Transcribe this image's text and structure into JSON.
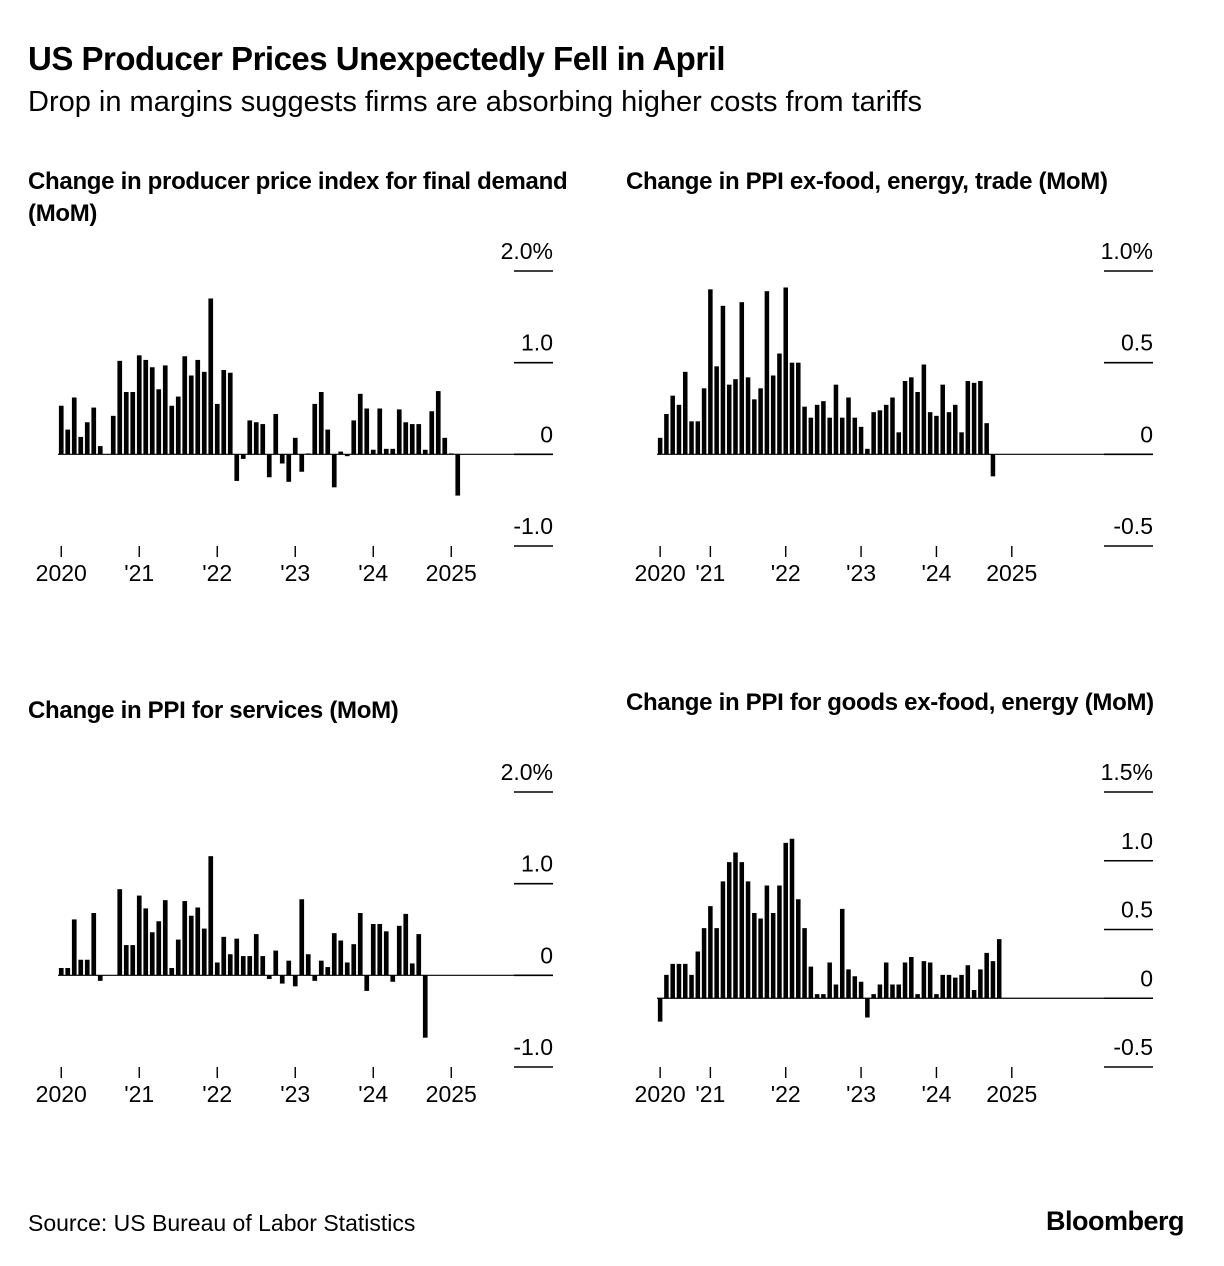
{
  "title": "US Producer Prices Unexpectedly Fell in April",
  "subtitle": "Drop in margins suggests firms are absorbing higher costs from tariffs",
  "source": "Source: US Bureau of Labor Statistics",
  "brand": "Bloomberg",
  "colors": {
    "bar": "#000000",
    "text": "#000000",
    "background": "#ffffff"
  },
  "chart_data": [
    {
      "type": "bar",
      "title": "Change in producer price index for final demand (MoM)",
      "ylim": [
        -1.0,
        2.0
      ],
      "yticks": [
        {
          "value": 2.0,
          "label": "2.0%"
        },
        {
          "value": 1.0,
          "label": "1.0"
        },
        {
          "value": 0,
          "label": "0"
        },
        {
          "value": -1.0,
          "label": "-1.0"
        }
      ],
      "xticks": [
        {
          "index": 0,
          "label": "2020"
        },
        {
          "index": 12,
          "label": "'21"
        },
        {
          "index": 24,
          "label": "'22"
        },
        {
          "index": 36,
          "label": "'23"
        },
        {
          "index": 48,
          "label": "'24"
        },
        {
          "index": 60,
          "label": "2025"
        }
      ],
      "start": "2020-01",
      "values": [
        0.53,
        0.27,
        0.62,
        0.19,
        0.35,
        0.51,
        0.09,
        0,
        0.42,
        1.02,
        0.68,
        0.68,
        1.08,
        1.03,
        0.95,
        0.71,
        0.97,
        0.53,
        0.63,
        1.07,
        0.86,
        1.03,
        0.9,
        1.7,
        0.55,
        0.92,
        0.89,
        -0.29,
        -0.05,
        0.37,
        0.35,
        0.33,
        -0.25,
        0.44,
        -0.1,
        -0.3,
        0.18,
        -0.19,
        0.01,
        0.55,
        0.68,
        0.27,
        -0.36,
        0.03,
        -0.02,
        0.37,
        0.66,
        0.5,
        0.05,
        0.5,
        0.06,
        0.06,
        0.49,
        0.35,
        0.33,
        0.33,
        0.05,
        0.47,
        0.69,
        0.18,
        0.01,
        -0.45
      ]
    },
    {
      "type": "bar",
      "title": "Change in PPI ex-food, energy, trade (MoM)",
      "ylim": [
        -0.5,
        1.0
      ],
      "yticks": [
        {
          "value": 1.0,
          "label": "1.0%"
        },
        {
          "value": 0.5,
          "label": "0.5"
        },
        {
          "value": 0,
          "label": "0"
        },
        {
          "value": -0.5,
          "label": "-0.5"
        }
      ],
      "xticks": [
        {
          "index": 0,
          "label": "2020"
        },
        {
          "index": 8,
          "label": "'21"
        },
        {
          "index": 20,
          "label": "'22"
        },
        {
          "index": 32,
          "label": "'23"
        },
        {
          "index": 44,
          "label": "'24"
        },
        {
          "index": 56,
          "label": "2025"
        }
      ],
      "start": "2020-01",
      "values": [
        0.09,
        0.22,
        0.32,
        0.27,
        0.45,
        0.18,
        0.18,
        0.36,
        0.9,
        0.48,
        0.81,
        0.38,
        0.41,
        0.83,
        0.42,
        0.3,
        0.36,
        0.89,
        0.43,
        0.55,
        0.91,
        0.5,
        0.5,
        0.26,
        0.2,
        0.27,
        0.29,
        0.2,
        0.38,
        0.2,
        0.31,
        0.2,
        0.15,
        0.03,
        0.23,
        0.24,
        0.27,
        0.31,
        0.12,
        0.4,
        0.42,
        0.34,
        0.49,
        0.23,
        0.21,
        0.38,
        0.23,
        0.27,
        0.12,
        0.4,
        0.39,
        0.4,
        0.17,
        -0.12
      ]
    },
    {
      "type": "bar",
      "title": "Change in PPI for services (MoM)",
      "ylim": [
        -1.0,
        2.0
      ],
      "yticks": [
        {
          "value": 2.0,
          "label": "2.0%"
        },
        {
          "value": 1.0,
          "label": "1.0"
        },
        {
          "value": 0,
          "label": "0"
        },
        {
          "value": -1.0,
          "label": "-1.0"
        }
      ],
      "xticks": [
        {
          "index": 0,
          "label": "2020"
        },
        {
          "index": 12,
          "label": "'21"
        },
        {
          "index": 24,
          "label": "'22"
        },
        {
          "index": 36,
          "label": "'23"
        },
        {
          "index": 48,
          "label": "'24"
        },
        {
          "index": 60,
          "label": "2025"
        }
      ],
      "start": "2020-01",
      "values": [
        0.08,
        0.08,
        0.61,
        0.17,
        0.17,
        0.68,
        -0.06,
        0,
        0,
        0.94,
        0.33,
        0.33,
        0.87,
        0.73,
        0.47,
        0.59,
        0.82,
        0.08,
        0.39,
        0.81,
        0.65,
        0.74,
        0.51,
        1.3,
        0.14,
        0.42,
        0.23,
        0.4,
        0.21,
        0.21,
        0.45,
        0.21,
        -0.04,
        0.27,
        -0.09,
        0.16,
        -0.12,
        0.83,
        0.23,
        -0.06,
        0.16,
        0.09,
        0.46,
        0.38,
        0.14,
        0.34,
        0.68,
        -0.17,
        0.56,
        0.56,
        0.48,
        -0.07,
        0.54,
        0.67,
        0.13,
        0.45,
        -0.68
      ]
    },
    {
      "type": "bar",
      "title": "Change in PPI for goods ex-food, energy (MoM)",
      "ylim": [
        -0.5,
        1.5
      ],
      "yticks": [
        {
          "value": 1.5,
          "label": "1.5%"
        },
        {
          "value": 1.0,
          "label": "1.0"
        },
        {
          "value": 0.5,
          "label": "0.5"
        },
        {
          "value": 0,
          "label": "0"
        },
        {
          "value": -0.5,
          "label": "-0.5"
        }
      ],
      "xticks": [
        {
          "index": 0,
          "label": "2020"
        },
        {
          "index": 8,
          "label": "'21"
        },
        {
          "index": 20,
          "label": "'22"
        },
        {
          "index": 32,
          "label": "'23"
        },
        {
          "index": 44,
          "label": "'24"
        },
        {
          "index": 56,
          "label": "2025"
        }
      ],
      "start": "2020-01",
      "values": [
        -0.17,
        0.17,
        0.25,
        0.25,
        0.25,
        0.17,
        0.34,
        0.51,
        0.67,
        0.51,
        0.85,
        0.99,
        1.06,
        0.99,
        0.85,
        0.62,
        0.58,
        0.82,
        0.62,
        0.82,
        1.13,
        1.16,
        0.72,
        0.51,
        0.23,
        0.03,
        0.03,
        0.26,
        0.1,
        0.65,
        0.21,
        0.16,
        0.12,
        -0.14,
        0.03,
        0.1,
        0.26,
        0.1,
        0.1,
        0.26,
        0.3,
        0.03,
        0.27,
        0.26,
        0.03,
        0.17,
        0.17,
        0.15,
        0.17,
        0.24,
        0.06,
        0.21,
        0.33,
        0.27,
        0.43
      ]
    }
  ]
}
